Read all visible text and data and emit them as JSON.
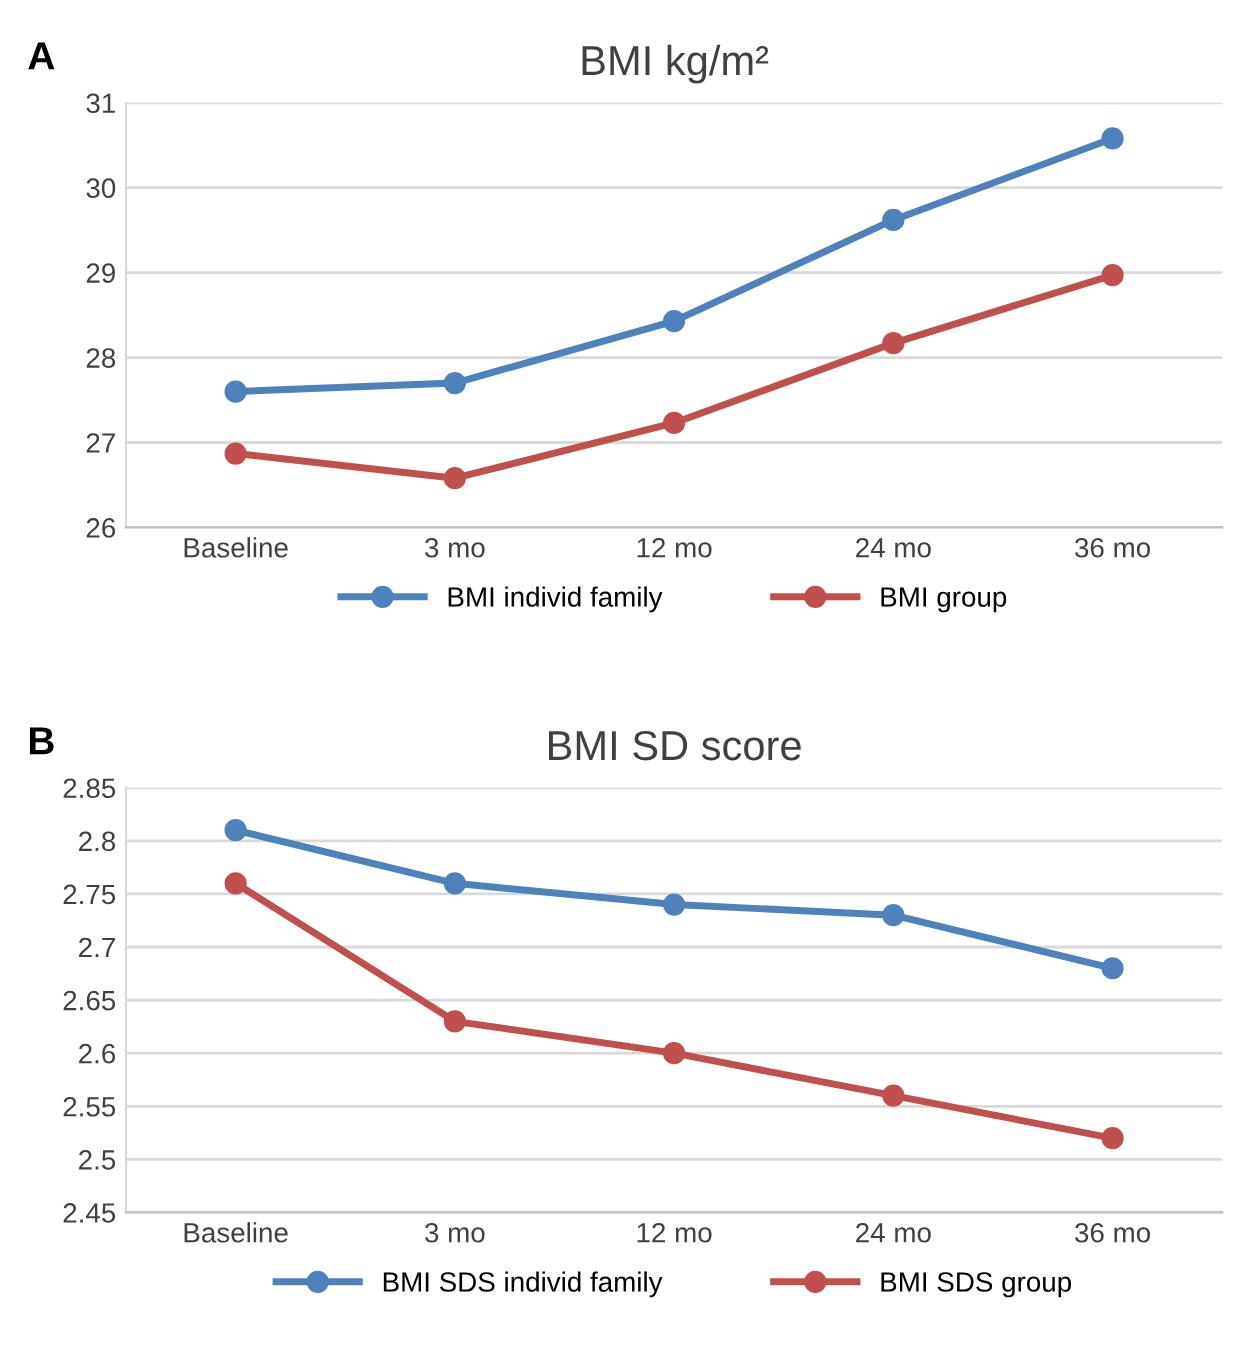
{
  "chart_data": [
    {
      "type": "line",
      "title": "BMI kg/m²",
      "annotations": [
        "A"
      ],
      "categories": [
        "Baseline",
        "3 mo",
        "12 mo",
        "24 mo",
        "36 mo"
      ],
      "ylim": [
        26,
        31
      ],
      "yticks": [
        26,
        27,
        28,
        29,
        30,
        31
      ],
      "grid": "y",
      "legend": "bottom",
      "marker": "circle",
      "line_style": "solid",
      "series": [
        {
          "name": "BMI individ family",
          "color": "#4f81bd",
          "values": [
            27.6,
            27.7,
            28.43,
            29.62,
            30.58
          ]
        },
        {
          "name": "BMI group",
          "color": "#c0504d",
          "values": [
            26.87,
            26.58,
            27.23,
            28.17,
            28.97
          ]
        }
      ]
    },
    {
      "type": "line",
      "title": "BMI SD score",
      "annotations": [
        "B"
      ],
      "categories": [
        "Baseline",
        "3 mo",
        "12 mo",
        "24 mo",
        "36 mo"
      ],
      "ylim": [
        2.45,
        2.85
      ],
      "yticks": [
        2.45,
        2.5,
        2.55,
        2.6,
        2.65,
        2.7,
        2.75,
        2.8,
        2.85
      ],
      "grid": "y",
      "legend": "bottom",
      "marker": "circle",
      "line_style": "solid",
      "series": [
        {
          "name": "BMI SDS individ family",
          "color": "#4f81bd",
          "values": [
            2.81,
            2.76,
            2.74,
            2.73,
            2.68
          ]
        },
        {
          "name": "BMI SDS group",
          "color": "#c0504d",
          "values": [
            2.76,
            2.63,
            2.6,
            2.56,
            2.52
          ]
        }
      ]
    }
  ]
}
